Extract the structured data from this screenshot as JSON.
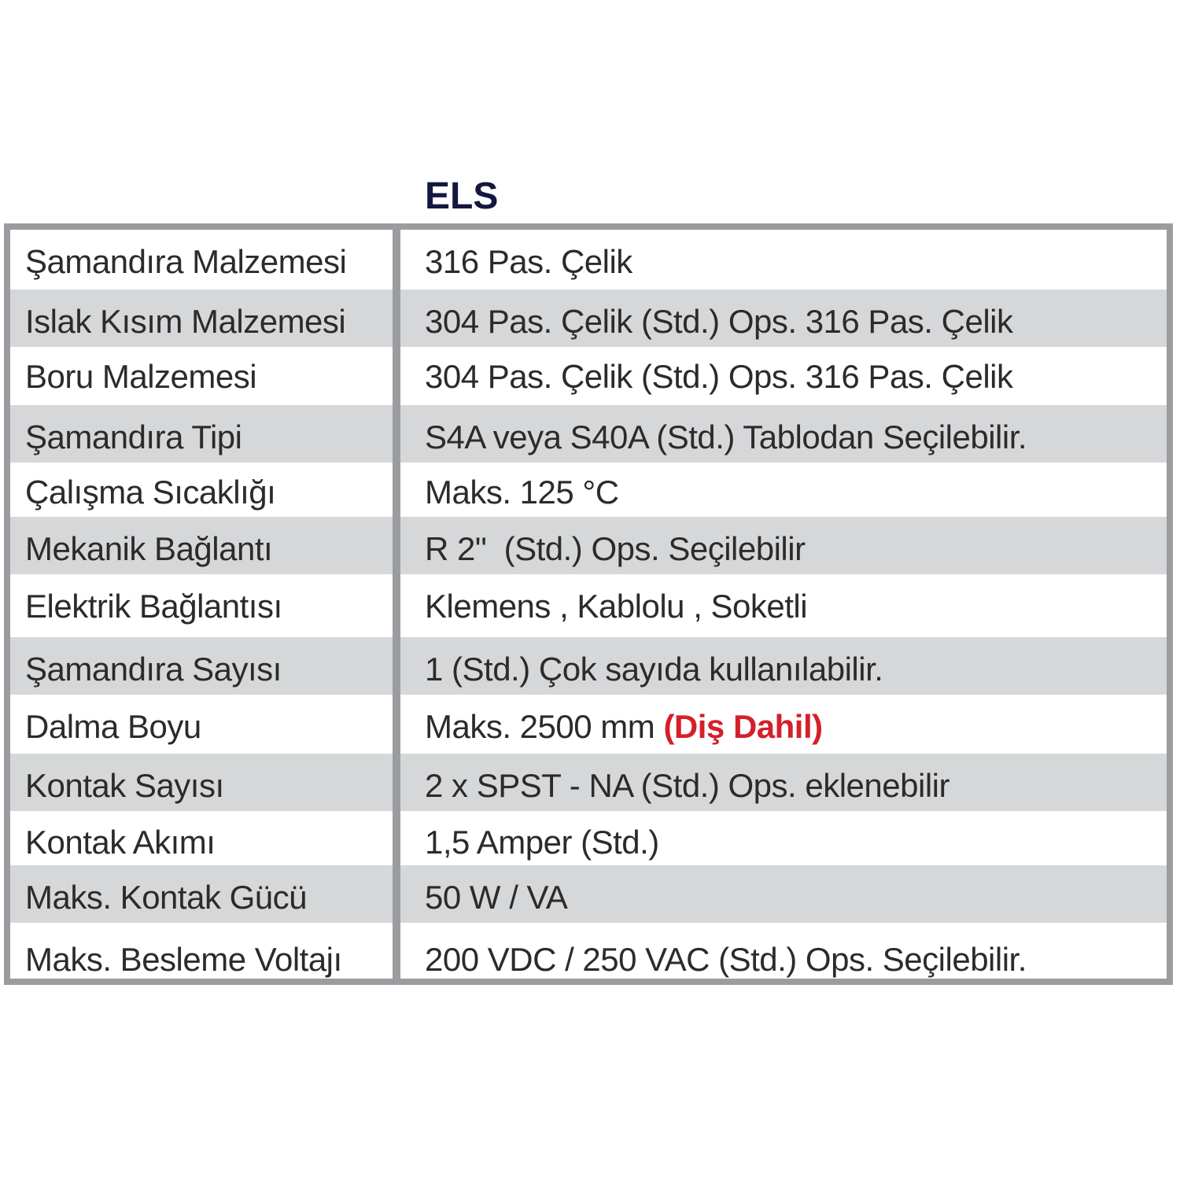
{
  "title": "ELS",
  "colors": {
    "border": "#9a9c9f",
    "stripe": "#d6d7d9",
    "title": "#14173f",
    "highlight": "#d4202a"
  },
  "rows": [
    {
      "label": "Şamandıra Malzemesi",
      "value": "316 Pas. Çelik"
    },
    {
      "label": "Islak Kısım Malzemesi",
      "value": "304 Pas. Çelik (Std.) Ops. 316 Pas. Çelik"
    },
    {
      "label": "Boru Malzemesi",
      "value": "304 Pas. Çelik (Std.) Ops. 316 Pas. Çelik"
    },
    {
      "label": "Şamandıra Tipi",
      "value": "S4A veya S40A (Std.) Tablodan Seçilebilir."
    },
    {
      "label": "Çalışma Sıcaklığı",
      "value": "Maks. 125 °C"
    },
    {
      "label": "Mekanik Bağlantı",
      "value": "R 2\"  (Std.) Ops. Seçilebilir"
    },
    {
      "label": "Elektrik Bağlantısı",
      "value": "Klemens , Kablolu , Soketli"
    },
    {
      "label": "Şamandıra Sayısı",
      "value": "1 (Std.) Çok sayıda kullanılabilir."
    },
    {
      "label": "Dalma Boyu",
      "value": "Maks. 2500 mm ",
      "note": "(Diş Dahil)"
    },
    {
      "label": "Kontak Sayısı",
      "value": "2 x SPST - NA (Std.) Ops. eklenebilir"
    },
    {
      "label": "Kontak Akımı",
      "value": "1,5 Amper (Std.)"
    },
    {
      "label": "Maks. Kontak Gücü",
      "value": "50 W / VA"
    },
    {
      "label": "Maks. Besleme Voltajı",
      "value": "200 VDC / 250 VAC (Std.) Ops. Seçilebilir."
    }
  ]
}
